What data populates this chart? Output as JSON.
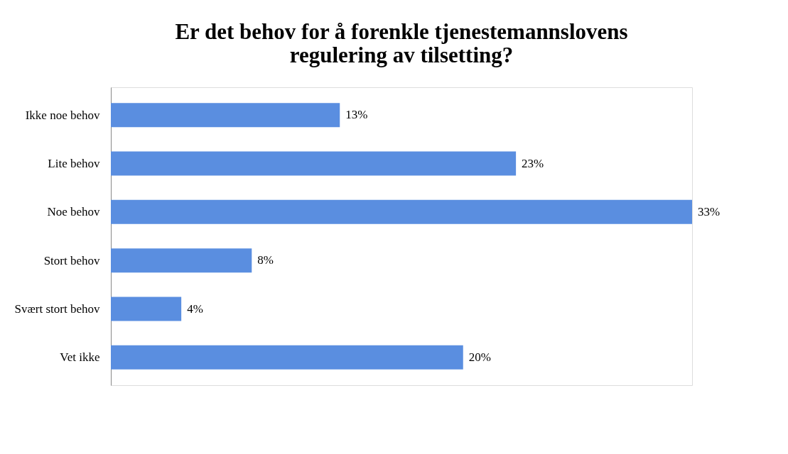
{
  "chart_data": {
    "type": "bar",
    "orientation": "horizontal",
    "title": [
      "Er det behov for å forenkle tjenestemannslovens",
      "regulering av tilsetting?"
    ],
    "categories": [
      "Ikke noe behov",
      "Lite behov",
      "Noe behov",
      "Stort behov",
      "Svært stort behov",
      "Vet ikke"
    ],
    "values": [
      13,
      23,
      33,
      8,
      4,
      20
    ],
    "value_labels": [
      "13%",
      "23%",
      "33%",
      "8%",
      "4%",
      "20%"
    ],
    "color": "#5a8ee0",
    "grid": false
  }
}
